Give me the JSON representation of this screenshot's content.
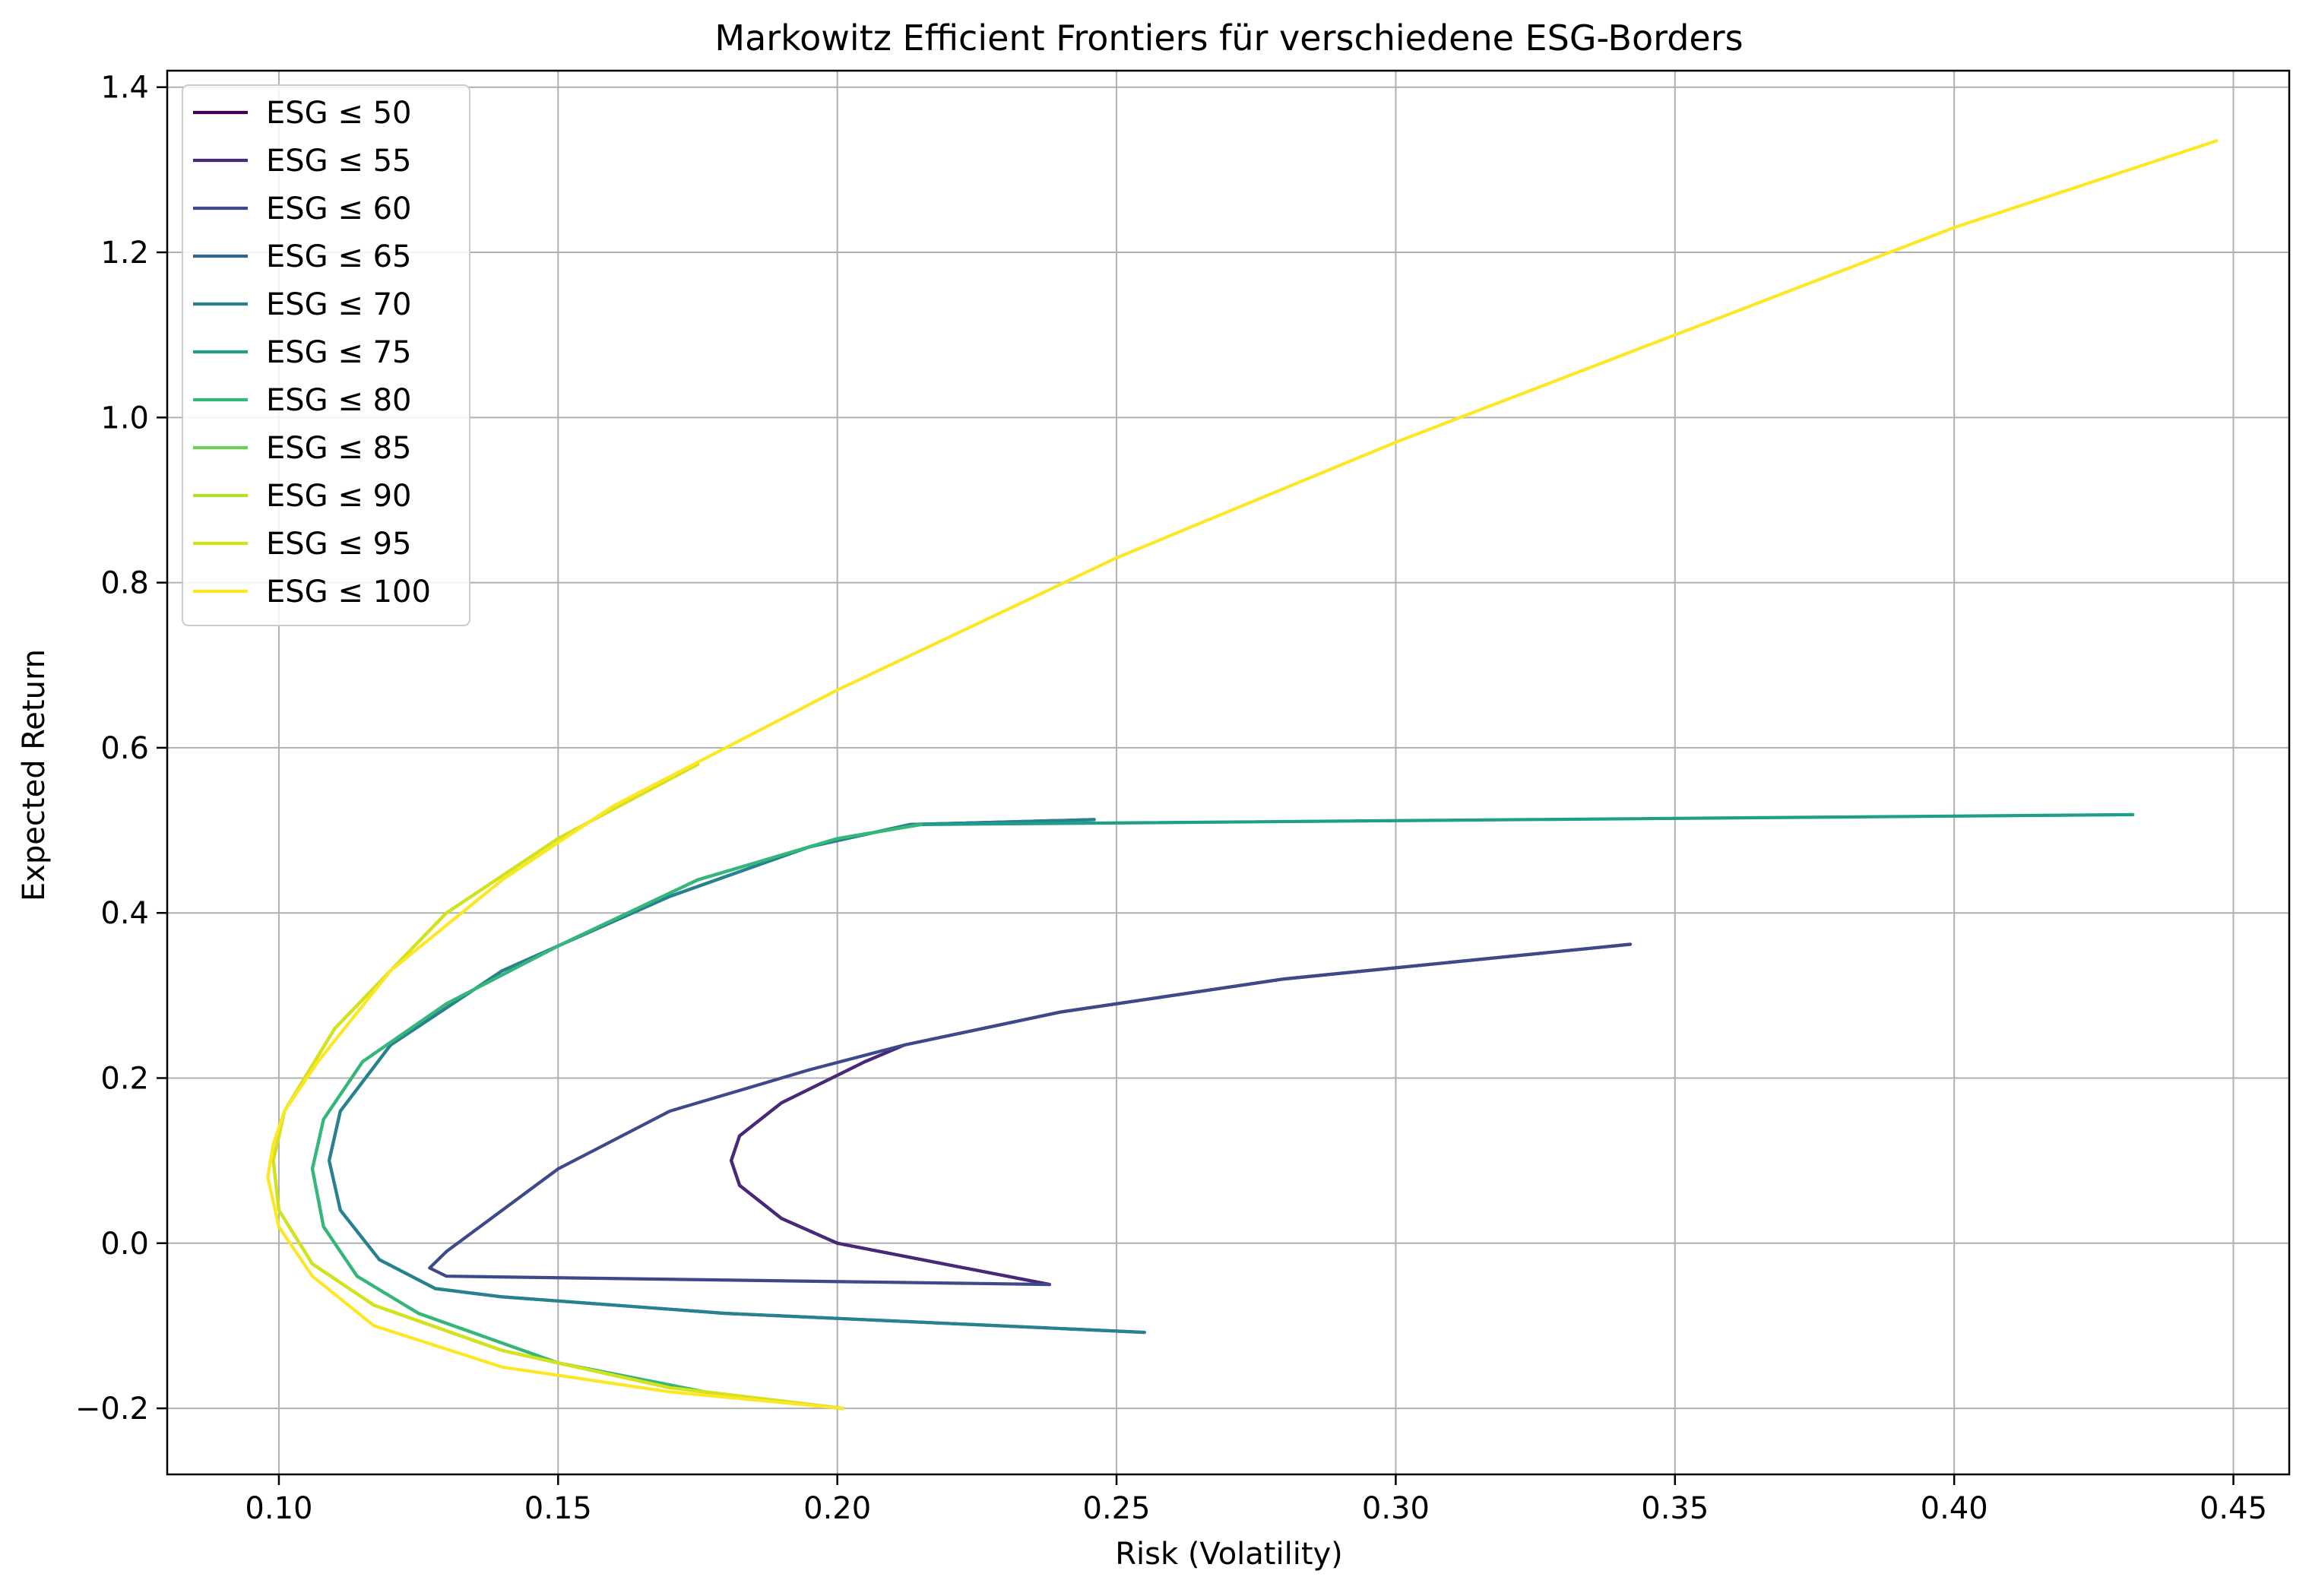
{
  "chart_data": {
    "type": "line",
    "title": "Markowitz Efficient Frontiers für verschiedene ESG-Borders",
    "xlabel": "Risk (Volatility)",
    "ylabel": "Expected Return",
    "xlim": [
      0.08,
      0.46
    ],
    "ylim": [
      -0.28,
      1.42
    ],
    "xticks": [
      0.1,
      0.15,
      0.2,
      0.25,
      0.3,
      0.35,
      0.4,
      0.45
    ],
    "yticks": [
      -0.2,
      0.0,
      0.2,
      0.4,
      0.6,
      0.8,
      1.0,
      1.2,
      1.4
    ],
    "xtick_labels": [
      "0.10",
      "0.15",
      "0.20",
      "0.25",
      "0.30",
      "0.35",
      "0.40",
      "0.45"
    ],
    "ytick_labels": [
      "−0.2",
      "0.0",
      "0.2",
      "0.4",
      "0.6",
      "0.8",
      "1.0",
      "1.2",
      "1.4"
    ],
    "grid": true,
    "legend_position": "top-left",
    "series": [
      {
        "name": "ESG ≤ 50",
        "color": "#440154",
        "x": [
          0.238,
          0.2,
          0.19,
          0.1825,
          0.181,
          0.1825,
          0.19,
          0.205,
          0.212
        ],
        "y": [
          -0.05,
          0.0,
          0.03,
          0.07,
          0.1,
          0.13,
          0.17,
          0.22,
          0.24
        ]
      },
      {
        "name": "ESG ≤ 55",
        "color": "#482878",
        "x": [
          0.238,
          0.2,
          0.19,
          0.1825,
          0.181,
          0.1825,
          0.19,
          0.205,
          0.212,
          0.24,
          0.28,
          0.342
        ],
        "y": [
          -0.05,
          0.0,
          0.03,
          0.07,
          0.1,
          0.13,
          0.17,
          0.22,
          0.24,
          0.28,
          0.32,
          0.362
        ]
      },
      {
        "name": "ESG ≤ 60",
        "color": "#3e4989",
        "x": [
          0.238,
          0.13,
          0.127,
          0.13,
          0.15,
          0.17,
          0.195,
          0.212,
          0.24,
          0.28,
          0.342
        ],
        "y": [
          -0.05,
          -0.04,
          -0.03,
          -0.01,
          0.09,
          0.16,
          0.21,
          0.24,
          0.28,
          0.32,
          0.362
        ]
      },
      {
        "name": "ESG ≤ 65",
        "color": "#31688e",
        "x": [
          0.255,
          0.18,
          0.14,
          0.128,
          0.118,
          0.111,
          0.109,
          0.111,
          0.12,
          0.14,
          0.17,
          0.195,
          0.213,
          0.246
        ],
        "y": [
          -0.108,
          -0.085,
          -0.065,
          -0.055,
          -0.02,
          0.04,
          0.1,
          0.16,
          0.24,
          0.33,
          0.42,
          0.48,
          0.507,
          0.513
        ]
      },
      {
        "name": "ESG ≤ 70",
        "color": "#26828e",
        "x": [
          0.255,
          0.18,
          0.14,
          0.128,
          0.118,
          0.111,
          0.109,
          0.111,
          0.12,
          0.14,
          0.17,
          0.195,
          0.213,
          0.246
        ],
        "y": [
          -0.108,
          -0.085,
          -0.065,
          -0.055,
          -0.02,
          0.04,
          0.1,
          0.16,
          0.24,
          0.33,
          0.42,
          0.48,
          0.507,
          0.513
        ]
      },
      {
        "name": "ESG ≤ 75",
        "color": "#1f9e89",
        "x": [
          0.201,
          0.18,
          0.15,
          0.125,
          0.114,
          0.108,
          0.106,
          0.108,
          0.115,
          0.13,
          0.15,
          0.175,
          0.2,
          0.215,
          0.432
        ],
        "y": [
          -0.2,
          -0.185,
          -0.145,
          -0.085,
          -0.04,
          0.02,
          0.09,
          0.15,
          0.22,
          0.29,
          0.36,
          0.44,
          0.49,
          0.507,
          0.519
        ]
      },
      {
        "name": "ESG ≤ 80",
        "color": "#35b779",
        "x": [
          0.201,
          0.18,
          0.15,
          0.125,
          0.114,
          0.108,
          0.106,
          0.108,
          0.115,
          0.13,
          0.15,
          0.175,
          0.2,
          0.215
        ],
        "y": [
          -0.2,
          -0.185,
          -0.145,
          -0.085,
          -0.04,
          0.02,
          0.09,
          0.15,
          0.22,
          0.29,
          0.36,
          0.44,
          0.49,
          0.507
        ]
      },
      {
        "name": "ESG ≤ 85",
        "color": "#6ece58",
        "x": [
          0.201,
          0.17,
          0.14,
          0.117,
          0.106,
          0.1,
          0.099,
          0.101,
          0.11,
          0.13,
          0.15,
          0.175
        ],
        "y": [
          -0.2,
          -0.175,
          -0.13,
          -0.075,
          -0.025,
          0.04,
          0.1,
          0.16,
          0.26,
          0.4,
          0.49,
          0.58
        ]
      },
      {
        "name": "ESG ≤ 90",
        "color": "#b5de2b",
        "x": [
          0.201,
          0.17,
          0.14,
          0.117,
          0.106,
          0.1,
          0.099,
          0.101,
          0.11,
          0.13,
          0.15,
          0.175
        ],
        "y": [
          -0.2,
          -0.175,
          -0.13,
          -0.075,
          -0.025,
          0.04,
          0.1,
          0.16,
          0.26,
          0.4,
          0.49,
          0.58
        ]
      },
      {
        "name": "ESG ≤ 95",
        "color": "#d4e21a",
        "x": [
          0.201,
          0.17,
          0.14,
          0.117,
          0.106,
          0.1,
          0.099,
          0.101,
          0.11,
          0.13,
          0.15,
          0.175
        ],
        "y": [
          -0.2,
          -0.175,
          -0.13,
          -0.075,
          -0.025,
          0.04,
          0.1,
          0.16,
          0.26,
          0.4,
          0.49,
          0.58
        ]
      },
      {
        "name": "ESG ≤ 100",
        "color": "#fde725",
        "x": [
          0.201,
          0.17,
          0.14,
          0.117,
          0.106,
          0.1,
          0.098,
          0.099,
          0.101,
          0.107,
          0.12,
          0.14,
          0.16,
          0.2,
          0.25,
          0.3,
          0.35,
          0.4,
          0.447
        ],
        "y": [
          -0.2,
          -0.18,
          -0.15,
          -0.1,
          -0.04,
          0.02,
          0.08,
          0.12,
          0.16,
          0.22,
          0.33,
          0.44,
          0.53,
          0.67,
          0.83,
          0.97,
          1.1,
          1.23,
          1.335
        ]
      }
    ]
  }
}
